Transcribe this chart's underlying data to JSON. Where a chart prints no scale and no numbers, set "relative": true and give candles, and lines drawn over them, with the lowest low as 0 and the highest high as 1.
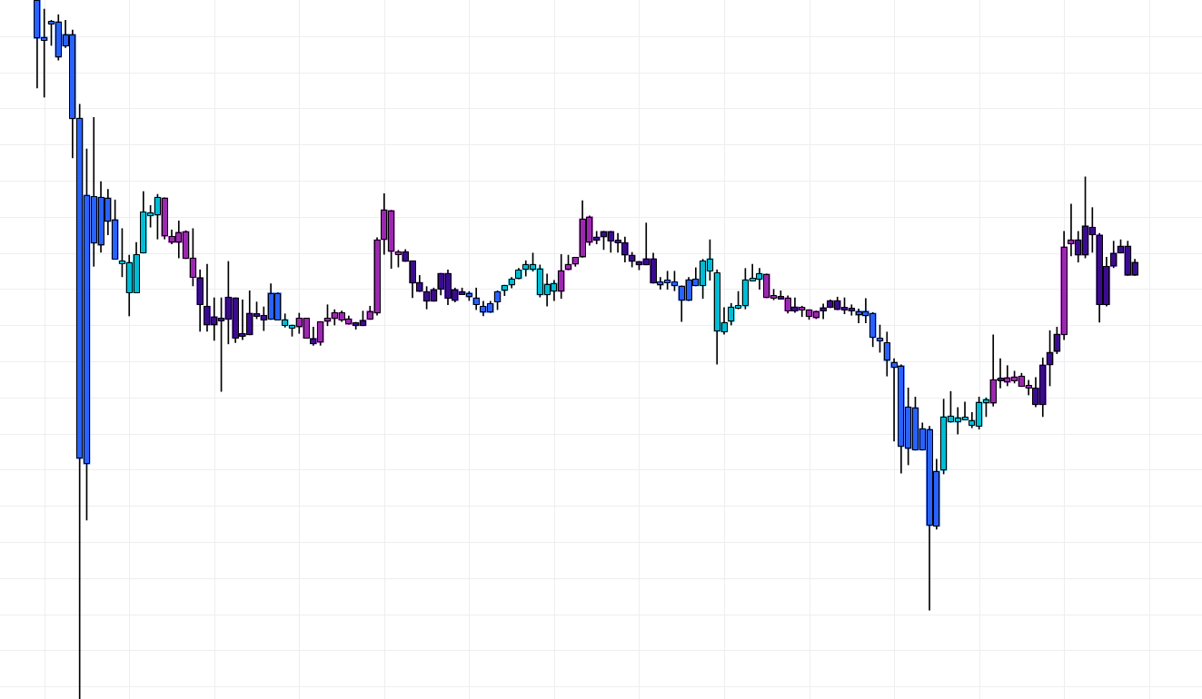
{
  "chart_data": {
    "type": "candlestick",
    "relative": true,
    "grid": true,
    "tick_labels": false,
    "categories": [
      null,
      null,
      null,
      null,
      null,
      null,
      null,
      null,
      null,
      null,
      null,
      null,
      null,
      null,
      null,
      null,
      null,
      null,
      null,
      null,
      null,
      null,
      null,
      null,
      null,
      null,
      null,
      null,
      null,
      null,
      null,
      null,
      null,
      null,
      null,
      null,
      null,
      null,
      null,
      null,
      null,
      null,
      null,
      null,
      null,
      null,
      null,
      null,
      null,
      null,
      null,
      null,
      null,
      null,
      null,
      null,
      null,
      null,
      null,
      null,
      null,
      null,
      null,
      null,
      null,
      null,
      null,
      null,
      null,
      null,
      null,
      null,
      null,
      null,
      null,
      null,
      null,
      null,
      null,
      null,
      null,
      null,
      null,
      null,
      null,
      null,
      null,
      null,
      null,
      null,
      null,
      null,
      null,
      null,
      null,
      null,
      null,
      null,
      null,
      null,
      null,
      null,
      null,
      null,
      null,
      null,
      null,
      null,
      null,
      null,
      null,
      null,
      null,
      null,
      null,
      null,
      null,
      null,
      null,
      null,
      null,
      null,
      null,
      null,
      null,
      null,
      null,
      null,
      null,
      null,
      null,
      null,
      null,
      null,
      null,
      null,
      null,
      null,
      null,
      null,
      null,
      null,
      null,
      null,
      null,
      null,
      null,
      null,
      null,
      null,
      null,
      null,
      null,
      null,
      null,
      null
    ],
    "ohlc": [
      [
        1,
        1,
        0.874,
        0.945
      ],
      [
        0.947,
        0.987,
        0.861,
        0.942
      ],
      [
        0.969,
        0.971,
        0.935,
        0.966
      ],
      [
        0.969,
        0.979,
        0.914,
        0.918
      ],
      [
        0.951,
        0.971,
        0.932,
        0.934
      ],
      [
        0.951,
        0.957,
        0.774,
        0.83
      ],
      [
        0.831,
        0.851,
        0,
        0.344
      ],
      [
        0.721,
        0.787,
        0.256,
        0.336
      ],
      [
        0.719,
        0.832,
        0.619,
        0.652
      ],
      [
        0.718,
        0.74,
        0.639,
        0.649
      ],
      [
        0.717,
        0.729,
        0.664,
        0.683
      ],
      [
        0.686,
        0.714,
        0.629,
        0.629
      ],
      [
        0.623,
        0.673,
        0.604,
        0.627
      ],
      [
        0.581,
        0.635,
        0.548,
        0.625
      ],
      [
        0.581,
        0.653,
        0.581,
        0.636
      ],
      [
        0.638,
        0.726,
        0.638,
        0.697
      ],
      [
        0.691,
        0.706,
        0.675,
        0.696
      ],
      [
        0.692,
        0.722,
        0.658,
        0.718
      ],
      [
        0.662,
        0.717,
        0.658,
        0.717
      ],
      [
        0.653,
        0.671,
        0.651,
        0.662
      ],
      [
        0.653,
        0.684,
        0.631,
        0.668
      ],
      [
        0.63,
        0.67,
        0.63,
        0.669
      ],
      [
        0.603,
        0.673,
        0.591,
        0.631
      ],
      [
        0.603,
        0.614,
        0.526,
        0.564
      ],
      [
        0.562,
        0.622,
        0.526,
        0.535
      ],
      [
        0.547,
        0.574,
        0.513,
        0.535
      ],
      [
        0.545,
        0.574,
        0.44,
        0.542
      ],
      [
        0.575,
        0.626,
        0.508,
        0.543
      ],
      [
        0.574,
        0.574,
        0.51,
        0.516
      ],
      [
        0.523,
        0.571,
        0.514,
        0.519
      ],
      [
        0.552,
        0.584,
        0.521,
        0.521
      ],
      [
        0.551,
        0.568,
        0.544,
        0.548
      ],
      [
        0.549,
        0.561,
        0.527,
        0.542
      ],
      [
        0.581,
        0.594,
        0.543,
        0.543
      ],
      [
        0.581,
        0.581,
        0.542,
        0.542
      ],
      [
        0.534,
        0.551,
        0.532,
        0.543
      ],
      [
        0.531,
        0.535,
        0.519,
        0.535
      ],
      [
        0.532,
        0.552,
        0.523,
        0.545
      ],
      [
        0.516,
        0.545,
        0.516,
        0.545
      ],
      [
        0.516,
        0.532,
        0.506,
        0.508
      ],
      [
        0.51,
        0.54,
        0.506,
        0.54
      ],
      [
        0.54,
        0.564,
        0.534,
        0.545
      ],
      [
        0.544,
        0.557,
        0.535,
        0.553
      ],
      [
        0.542,
        0.555,
        0.54,
        0.553
      ],
      [
        0.536,
        0.548,
        0.536,
        0.544
      ],
      [
        0.538,
        0.539,
        0.529,
        0.534
      ],
      [
        0.542,
        0.555,
        0.534,
        0.534
      ],
      [
        0.543,
        0.562,
        0.543,
        0.555
      ],
      [
        0.552,
        0.66,
        0.549,
        0.657
      ],
      [
        0.657,
        0.723,
        0.636,
        0.7
      ],
      [
        0.64,
        0.699,
        0.616,
        0.699
      ],
      [
        0.636,
        0.642,
        0.618,
        0.64
      ],
      [
        0.64,
        0.643,
        0.626,
        0.626
      ],
      [
        0.627,
        0.627,
        0.574,
        0.595
      ],
      [
        0.596,
        0.606,
        0.583,
        0.583
      ],
      [
        0.583,
        0.59,
        0.558,
        0.569
      ],
      [
        0.586,
        0.588,
        0.569,
        0.569
      ],
      [
        0.609,
        0.609,
        0.578,
        0.586
      ],
      [
        0.609,
        0.614,
        0.564,
        0.573
      ],
      [
        0.586,
        0.588,
        0.568,
        0.57
      ],
      [
        0.583,
        0.588,
        0.579,
        0.579
      ],
      [
        0.581,
        0.583,
        0.57,
        0.575
      ],
      [
        0.574,
        0.588,
        0.557,
        0.564
      ],
      [
        0.562,
        0.569,
        0.548,
        0.553
      ],
      [
        0.566,
        0.569,
        0.553,
        0.553
      ],
      [
        0.583,
        0.584,
        0.557,
        0.568
      ],
      [
        0.584,
        0.592,
        0.577,
        0.592
      ],
      [
        0.592,
        0.603,
        0.588,
        0.601
      ],
      [
        0.601,
        0.616,
        0.601,
        0.614
      ],
      [
        0.614,
        0.627,
        0.605,
        0.622
      ],
      [
        0.614,
        0.638,
        0.612,
        0.622
      ],
      [
        0.578,
        0.621,
        0.575,
        0.616
      ],
      [
        0.578,
        0.608,
        0.562,
        0.594
      ],
      [
        0.583,
        0.599,
        0.57,
        0.595
      ],
      [
        0.583,
        0.636,
        0.573,
        0.613
      ],
      [
        0.614,
        0.635,
        0.614,
        0.622
      ],
      [
        0.622,
        0.632,
        0.619,
        0.632
      ],
      [
        0.632,
        0.713,
        0.632,
        0.687
      ],
      [
        0.653,
        0.691,
        0.649,
        0.69
      ],
      [
        0.661,
        0.669,
        0.651,
        0.656
      ],
      [
        0.669,
        0.669,
        0.643,
        0.661
      ],
      [
        0.669,
        0.669,
        0.639,
        0.655
      ],
      [
        0.655,
        0.666,
        0.639,
        0.653
      ],
      [
        0.653,
        0.661,
        0.625,
        0.635
      ],
      [
        0.635,
        0.639,
        0.618,
        0.626
      ],
      [
        0.626,
        0.626,
        0.614,
        0.621
      ],
      [
        0.63,
        0.681,
        0.621,
        0.621
      ],
      [
        0.63,
        0.638,
        0.595,
        0.595
      ],
      [
        0.597,
        0.603,
        0.586,
        0.592
      ],
      [
        0.599,
        0.612,
        0.586,
        0.597
      ],
      [
        0.597,
        0.612,
        0.584,
        0.591
      ],
      [
        0.591,
        0.591,
        0.54,
        0.57
      ],
      [
        0.6,
        0.603,
        0.57,
        0.57
      ],
      [
        0.601,
        0.617,
        0.591,
        0.591
      ],
      [
        0.591,
        0.629,
        0.573,
        0.627
      ],
      [
        0.612,
        0.657,
        0.599,
        0.63
      ],
      [
        0.526,
        0.614,
        0.479,
        0.61
      ],
      [
        0.525,
        0.56,
        0.522,
        0.539
      ],
      [
        0.54,
        0.566,
        0.535,
        0.561
      ],
      [
        0.561,
        0.583,
        0.558,
        0.562
      ],
      [
        0.562,
        0.616,
        0.558,
        0.6
      ],
      [
        0.599,
        0.622,
        0.599,
        0.601
      ],
      [
        0.6,
        0.616,
        0.586,
        0.609
      ],
      [
        0.574,
        0.608,
        0.574,
        0.608
      ],
      [
        0.574,
        0.586,
        0.571,
        0.577
      ],
      [
        0.575,
        0.584,
        0.573,
        0.574
      ],
      [
        0.555,
        0.577,
        0.552,
        0.574
      ],
      [
        0.561,
        0.574,
        0.553,
        0.555
      ],
      [
        0.557,
        0.562,
        0.547,
        0.56
      ],
      [
        0.547,
        0.557,
        0.543,
        0.557
      ],
      [
        0.545,
        0.555,
        0.544,
        0.555
      ],
      [
        0.56,
        0.565,
        0.544,
        0.555
      ],
      [
        0.57,
        0.571,
        0.56,
        0.56
      ],
      [
        0.57,
        0.575,
        0.557,
        0.557
      ],
      [
        0.56,
        0.574,
        0.551,
        0.558
      ],
      [
        0.558,
        0.564,
        0.549,
        0.555
      ],
      [
        0.555,
        0.558,
        0.538,
        0.549
      ],
      [
        0.555,
        0.573,
        0.538,
        0.548
      ],
      [
        0.552,
        0.553,
        0.504,
        0.517
      ],
      [
        0.516,
        0.535,
        0.496,
        0.512
      ],
      [
        0.51,
        0.525,
        0.462,
        0.484
      ],
      [
        0.482,
        0.487,
        0.369,
        0.474
      ],
      [
        0.477,
        0.478,
        0.323,
        0.361
      ],
      [
        0.418,
        0.445,
        0.335,
        0.358
      ],
      [
        0.417,
        0.432,
        0.356,
        0.356
      ],
      [
        0.387,
        0.395,
        0.356,
        0.356
      ],
      [
        0.386,
        0.39,
        0.127,
        0.248
      ],
      [
        0.326,
        0.343,
        0.243,
        0.247
      ],
      [
        0.327,
        0.429,
        0.322,
        0.404
      ],
      [
        0.396,
        0.44,
        0.396,
        0.405
      ],
      [
        0.396,
        0.417,
        0.379,
        0.403
      ],
      [
        0.399,
        0.425,
        0.399,
        0.403
      ],
      [
        0.391,
        0.41,
        0.388,
        0.399
      ],
      [
        0.39,
        0.432,
        0.386,
        0.425
      ],
      [
        0.423,
        0.431,
        0.404,
        0.429
      ],
      [
        0.423,
        0.521,
        0.419,
        0.457
      ],
      [
        0.458,
        0.487,
        0.445,
        0.456
      ],
      [
        0.453,
        0.477,
        0.448,
        0.46
      ],
      [
        0.455,
        0.469,
        0.452,
        0.461
      ],
      [
        0.447,
        0.466,
        0.447,
        0.462
      ],
      [
        0.445,
        0.456,
        0.435,
        0.448
      ],
      [
        0.445,
        0.46,
        0.418,
        0.421
      ],
      [
        0.478,
        0.488,
        0.404,
        0.421
      ],
      [
        0.496,
        0.527,
        0.448,
        0.478
      ],
      [
        0.522,
        0.532,
        0.494,
        0.497
      ],
      [
        0.521,
        0.669,
        0.514,
        0.647
      ],
      [
        0.651,
        0.708,
        0.634,
        0.657
      ],
      [
        0.657,
        0.669,
        0.625,
        0.635
      ],
      [
        0.677,
        0.747,
        0.631,
        0.635
      ],
      [
        0.675,
        0.703,
        0.639,
        0.664
      ],
      [
        0.664,
        0.666,
        0.539,
        0.564
      ],
      [
        0.619,
        0.632,
        0.562,
        0.564
      ],
      [
        0.638,
        0.655,
        0.617,
        0.619
      ],
      [
        0.648,
        0.657,
        0.638,
        0.638
      ],
      [
        0.648,
        0.655,
        0.606,
        0.606
      ],
      [
        0.625,
        0.629,
        0.606,
        0.606
      ]
    ],
    "colors": [
      "#2962ff",
      "#2962ff",
      "#2962ff",
      "#2962ff",
      "#2962ff",
      "#2962ff",
      "#2962ff",
      "#2962ff",
      "#2962ff",
      "#2962ff",
      "#2962ff",
      "#2962ff",
      "#00bcd4",
      "#00bcd4",
      "#00bcd4",
      "#00bcd4",
      "#00bcd4",
      "#00bcd4",
      "#9c27b0",
      "#9c27b0",
      "#9c27b0",
      "#9c27b0",
      "#9c27b0",
      "#3b0b8f",
      "#3b0b8f",
      "#3b0b8f",
      "#3b0b8f",
      "#3b0b8f",
      "#3b0b8f",
      "#3b0b8f",
      "#3b0b8f",
      "#3b0b8f",
      "#3b0b8f",
      "#2962ff",
      "#2962ff",
      "#00bcd4",
      "#00bcd4",
      "#9c27b0",
      "#9c27b0",
      "#3b0b8f",
      "#9c27b0",
      "#9c27b0",
      "#9c27b0",
      "#9c27b0",
      "#9c27b0",
      "#3b0b8f",
      "#3b0b8f",
      "#9c27b0",
      "#9c27b0",
      "#9c27b0",
      "#9c27b0",
      "#9c27b0",
      "#3b0b8f",
      "#3b0b8f",
      "#3b0b8f",
      "#3b0b8f",
      "#3b0b8f",
      "#3b0b8f",
      "#3b0b8f",
      "#3b0b8f",
      "#3b0b8f",
      "#2962ff",
      "#2962ff",
      "#2962ff",
      "#2962ff",
      "#2962ff",
      "#00bcd4",
      "#00bcd4",
      "#00bcd4",
      "#00bcd4",
      "#00bcd4",
      "#00bcd4",
      "#00bcd4",
      "#00bcd4",
      "#9c27b0",
      "#9c27b0",
      "#9c27b0",
      "#9c27b0",
      "#9c27b0",
      "#3b0b8f",
      "#3b0b8f",
      "#3b0b8f",
      "#3b0b8f",
      "#3b0b8f",
      "#3b0b8f",
      "#3b0b8f",
      "#3b0b8f",
      "#3b0b8f",
      "#2962ff",
      "#2962ff",
      "#2962ff",
      "#2962ff",
      "#2962ff",
      "#2962ff",
      "#00bcd4",
      "#00bcd4",
      "#00bcd4",
      "#00bcd4",
      "#00bcd4",
      "#00bcd4",
      "#00bcd4",
      "#00bcd4",
      "#00bcd4",
      "#9c27b0",
      "#9c27b0",
      "#3b0b8f",
      "#9c27b0",
      "#3b0b8f",
      "#9c27b0",
      "#9c27b0",
      "#9c27b0",
      "#3b0b8f",
      "#3b0b8f",
      "#3b0b8f",
      "#3b0b8f",
      "#3b0b8f",
      "#2962ff",
      "#2962ff",
      "#2962ff",
      "#2962ff",
      "#2962ff",
      "#2962ff",
      "#2962ff",
      "#2962ff",
      "#2962ff",
      "#2962ff",
      "#2962ff",
      "#2962ff",
      "#00bcd4",
      "#00bcd4",
      "#00bcd4",
      "#00bcd4",
      "#00bcd4",
      "#00bcd4",
      "#00bcd4",
      "#9c27b0",
      "#3b0b8f",
      "#9c27b0",
      "#9c27b0",
      "#9c27b0",
      "#9c27b0",
      "#3b0b8f",
      "#3b0b8f",
      "#3b0b8f",
      "#3b0b8f",
      "#9c27b0",
      "#9c27b0",
      "#3b0b8f",
      "#3b0b8f",
      "#3b0b8f",
      "#3b0b8f",
      "#3b0b8f",
      "#3b0b8f",
      "#3b0b8f",
      "#3b0b8f",
      "#3b0b8f"
    ]
  }
}
